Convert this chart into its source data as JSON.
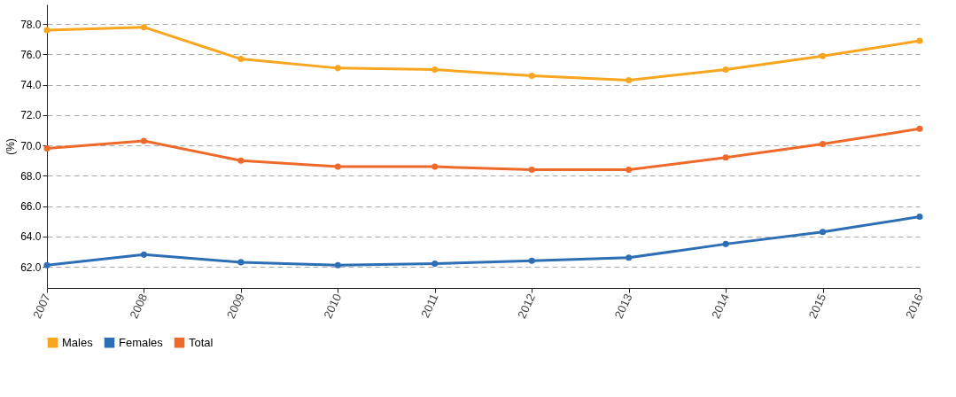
{
  "chart_data": {
    "type": "line",
    "ylabel": "(%)",
    "categories": [
      "2007",
      "2008",
      "2009",
      "2010",
      "2011",
      "2012",
      "2013",
      "2014",
      "2015",
      "2016"
    ],
    "series": [
      {
        "name": "Males",
        "color": "#f8a51f",
        "values": [
          77.6,
          77.8,
          75.7,
          75.1,
          75.0,
          74.6,
          74.3,
          75.0,
          75.9,
          76.9
        ]
      },
      {
        "name": "Females",
        "color": "#2e6eb5",
        "values": [
          62.1,
          62.8,
          62.3,
          62.1,
          62.2,
          62.4,
          62.6,
          63.5,
          64.3,
          65.3
        ]
      },
      {
        "name": "Total",
        "color": "#ee6a2b",
        "values": [
          69.8,
          70.3,
          69.0,
          68.6,
          68.6,
          68.4,
          68.4,
          69.2,
          70.1,
          71.1
        ]
      }
    ],
    "ylim": [
      60.6,
      79.3
    ],
    "yticks": [
      {
        "value": 62,
        "label": "62.0"
      },
      {
        "value": 64,
        "label": "64.0"
      },
      {
        "value": 66,
        "label": "66.0"
      },
      {
        "value": 68,
        "label": "68.0"
      },
      {
        "value": 70,
        "label": "70.0"
      },
      {
        "value": 72,
        "label": "72.0"
      },
      {
        "value": 74,
        "label": "74.0"
      },
      {
        "value": 76,
        "label": "76.0"
      },
      {
        "value": 78,
        "label": "78.0"
      }
    ],
    "grid": "y",
    "legend": "bottom",
    "marker": "circle",
    "line_style": "solid"
  }
}
